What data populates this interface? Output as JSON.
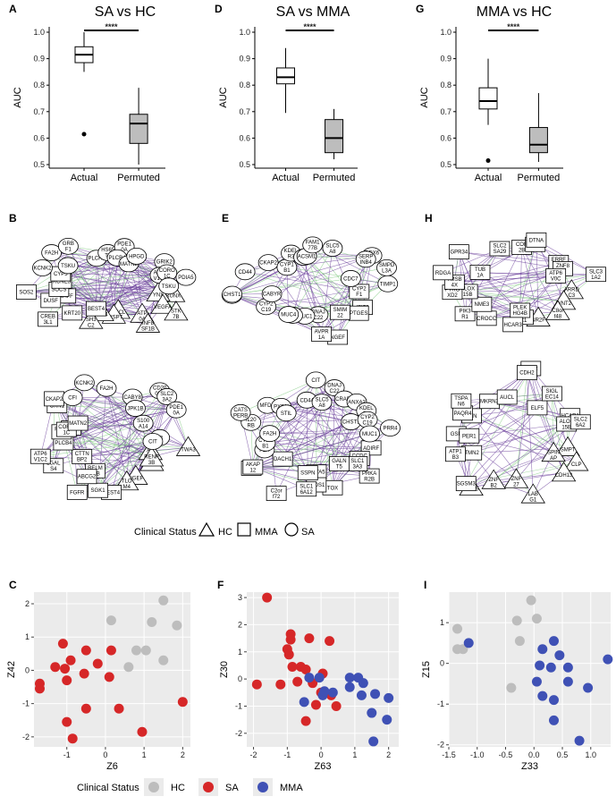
{
  "chart_data": [
    {
      "panel": "A",
      "type": "box",
      "title": "SA vs HC",
      "ylabel": "AUC",
      "ylim": [
        0.5,
        1.0
      ],
      "yticks": [
        "0.5",
        "0.6",
        "0.7",
        "0.8",
        "0.9",
        "1.0"
      ],
      "categories": [
        "Actual",
        "Permuted"
      ],
      "boxes": [
        {
          "category": "Actual",
          "min": 0.85,
          "q1": 0.885,
          "median": 0.915,
          "q3": 0.945,
          "max": 1.0,
          "outliers": [
            0.615
          ]
        },
        {
          "category": "Permuted",
          "min": 0.5,
          "q1": 0.58,
          "median": 0.655,
          "q3": 0.69,
          "max": 0.79,
          "outliers": []
        }
      ],
      "significance": "****"
    },
    {
      "panel": "D",
      "type": "box",
      "title": "SA vs MMA",
      "ylabel": "AUC",
      "ylim": [
        0.5,
        1.0
      ],
      "yticks": [
        "0.5",
        "0.6",
        "0.7",
        "0.8",
        "0.9",
        "1.0"
      ],
      "categories": [
        "Actual",
        "Permuted"
      ],
      "boxes": [
        {
          "category": "Actual",
          "min": 0.695,
          "q1": 0.805,
          "median": 0.83,
          "q3": 0.865,
          "max": 0.94,
          "outliers": []
        },
        {
          "category": "Permuted",
          "min": 0.52,
          "q1": 0.545,
          "median": 0.6,
          "q3": 0.67,
          "max": 0.71,
          "outliers": []
        }
      ],
      "significance": "****"
    },
    {
      "panel": "G",
      "type": "box",
      "title": "MMA vs HC",
      "ylabel": "AUC",
      "ylim": [
        0.5,
        1.0
      ],
      "yticks": [
        "0.5",
        "0.6",
        "0.7",
        "0.8",
        "0.9",
        "1.0"
      ],
      "categories": [
        "Actual",
        "Permuted"
      ],
      "boxes": [
        {
          "category": "Actual",
          "min": 0.65,
          "q1": 0.71,
          "median": 0.74,
          "q3": 0.79,
          "max": 0.9,
          "outliers": [
            0.515
          ]
        },
        {
          "category": "Permuted",
          "min": 0.51,
          "q1": 0.545,
          "median": 0.575,
          "q3": 0.64,
          "max": 0.77,
          "outliers": []
        }
      ],
      "significance": "****"
    },
    {
      "panel": "C",
      "type": "scatter",
      "xlabel": "Z6",
      "ylabel": "Z42",
      "xlim": [
        -1.85,
        2.2
      ],
      "ylim": [
        -2.3,
        2.35
      ],
      "xticks": [
        -1,
        0,
        1,
        2
      ],
      "yticks": [
        -2,
        -1,
        0,
        1,
        2
      ],
      "series": [
        {
          "name": "HC",
          "color": "#bdbdbd",
          "points": [
            [
              1.5,
              2.1
            ],
            [
              1.85,
              1.35
            ],
            [
              0.15,
              1.5
            ],
            [
              1.2,
              1.45
            ],
            [
              0.8,
              0.6
            ],
            [
              1.05,
              0.6
            ],
            [
              1.5,
              0.3
            ],
            [
              0.6,
              0.1
            ]
          ]
        },
        {
          "name": "SA",
          "color": "#d62728",
          "points": [
            [
              -1.1,
              0.8
            ],
            [
              -0.5,
              0.6
            ],
            [
              0.15,
              0.6
            ],
            [
              -1.3,
              0.1
            ],
            [
              -0.9,
              0.3
            ],
            [
              -1.05,
              0.05
            ],
            [
              -0.55,
              -0.1
            ],
            [
              -0.2,
              0.2
            ],
            [
              -1.7,
              -0.4
            ],
            [
              -1.7,
              -0.55
            ],
            [
              -1.0,
              -0.3
            ],
            [
              0.1,
              -0.2
            ],
            [
              -0.5,
              -1.15
            ],
            [
              0.35,
              -1.15
            ],
            [
              -1.0,
              -1.55
            ],
            [
              -0.85,
              -2.05
            ],
            [
              0.95,
              -1.85
            ],
            [
              2.0,
              -0.95
            ]
          ]
        }
      ]
    },
    {
      "panel": "F",
      "type": "scatter",
      "xlabel": "Z63",
      "ylabel": "Z30",
      "xlim": [
        -2.2,
        2.3
      ],
      "ylim": [
        -2.5,
        3.2
      ],
      "xticks": [
        -2,
        -1,
        0,
        1,
        2
      ],
      "yticks": [
        -2,
        -1,
        0,
        1,
        2,
        3
      ],
      "series": [
        {
          "name": "SA",
          "color": "#d62728",
          "points": [
            [
              -1.6,
              3.0
            ],
            [
              -0.9,
              1.65
            ],
            [
              -0.9,
              1.45
            ],
            [
              -0.35,
              1.5
            ],
            [
              0.25,
              1.4
            ],
            [
              -1.0,
              1.1
            ],
            [
              -0.95,
              0.9
            ],
            [
              -0.6,
              0.45
            ],
            [
              -0.85,
              0.45
            ],
            [
              -1.2,
              -0.2
            ],
            [
              -1.9,
              -0.2
            ],
            [
              -0.7,
              -0.1
            ],
            [
              -0.25,
              -0.15
            ],
            [
              0.05,
              0.2
            ],
            [
              -0.45,
              0.35
            ],
            [
              0.0,
              -0.5
            ],
            [
              -0.15,
              -0.95
            ],
            [
              -0.45,
              -1.55
            ],
            [
              0.3,
              -0.6
            ],
            [
              0.45,
              -1.0
            ]
          ]
        },
        {
          "name": "MMA",
          "color": "#3f51b5",
          "points": [
            [
              -0.35,
              0.05
            ],
            [
              -0.05,
              0.05
            ],
            [
              0.05,
              -0.6
            ],
            [
              0.85,
              0.05
            ],
            [
              1.1,
              0.05
            ],
            [
              0.85,
              -0.3
            ],
            [
              1.25,
              -0.15
            ],
            [
              0.35,
              -0.5
            ],
            [
              1.2,
              -0.6
            ],
            [
              1.6,
              -0.55
            ],
            [
              -0.5,
              -0.85
            ],
            [
              0.1,
              -0.45
            ],
            [
              1.5,
              -1.25
            ],
            [
              2.0,
              -0.7
            ],
            [
              1.95,
              -1.5
            ],
            [
              1.55,
              -2.3
            ]
          ]
        }
      ]
    },
    {
      "panel": "I",
      "type": "scatter",
      "xlabel": "Z33",
      "ylabel": "Z15",
      "xlim": [
        -1.5,
        1.35
      ],
      "ylim": [
        -2.05,
        1.75
      ],
      "xticks": [
        -1.5,
        -1.0,
        -0.5,
        0.0,
        0.5,
        1.0
      ],
      "yticks": [
        -2,
        -1,
        0,
        1
      ],
      "series": [
        {
          "name": "HC",
          "color": "#bdbdbd",
          "points": [
            [
              -0.05,
              1.55
            ],
            [
              -0.3,
              1.05
            ],
            [
              0.05,
              1.1
            ],
            [
              -1.35,
              0.85
            ],
            [
              -1.25,
              0.35
            ],
            [
              -1.35,
              0.35
            ],
            [
              -0.25,
              0.55
            ],
            [
              -0.4,
              -0.6
            ]
          ]
        },
        {
          "name": "MMA",
          "color": "#3f51b5",
          "points": [
            [
              -1.15,
              0.5
            ],
            [
              0.35,
              0.55
            ],
            [
              0.15,
              0.35
            ],
            [
              0.45,
              0.2
            ],
            [
              0.1,
              -0.05
            ],
            [
              0.3,
              -0.1
            ],
            [
              0.6,
              -0.1
            ],
            [
              1.3,
              0.1
            ],
            [
              0.05,
              -0.45
            ],
            [
              0.6,
              -0.45
            ],
            [
              0.15,
              -0.8
            ],
            [
              0.35,
              -0.9
            ],
            [
              0.95,
              -0.6
            ],
            [
              0.35,
              -1.4
            ],
            [
              0.8,
              -1.9
            ]
          ]
        }
      ]
    }
  ],
  "panels": {
    "A": {
      "letter": "A",
      "title": "SA vs HC"
    },
    "D": {
      "letter": "D",
      "title": "SA vs MMA"
    },
    "G": {
      "letter": "G",
      "title": "MMA vs HC"
    },
    "B": {
      "letter": "B"
    },
    "E": {
      "letter": "E"
    },
    "H": {
      "letter": "H"
    },
    "C": {
      "letter": "C"
    },
    "F": {
      "letter": "F"
    },
    "I": {
      "letter": "I"
    }
  },
  "networks": {
    "B_top": {
      "HC": [
        "RUNX",
        "YNX",
        "VEGFA",
        "STK\n7B",
        "ATP\n0A",
        "INF8\nSF1B",
        "CXCL",
        "SUSPT",
        "IRF4",
        "SH3\nC2"
      ],
      "MMA": [
        "BEST4",
        "CREB\n3L1",
        "KRT20",
        "MAFF",
        "DUSF",
        "SOCS",
        "SOS2",
        "KCNE3",
        "CYP3"
      ],
      "SA": [
        "KCNK2",
        "TSKU",
        "FA2H",
        "GRB\nF1",
        "PLCH2",
        "HS65\nT2",
        "PDE1\n0A",
        "PLCB4",
        "MATN2",
        "HPGD",
        "GRIK2",
        "ATP6\nV1C2",
        "CORO\n1C",
        "PDIA5",
        "TSKU"
      ]
    },
    "B_bottom": {
      "HC": [
        "TWA3",
        "AC\nEN",
        "APBB",
        "RENP\n3B",
        "NGEF",
        "TLO\nM4"
      ],
      "MMA": [
        "BEST4",
        "SGK1",
        "RELM\nL1B",
        "FGFR",
        "ABCG2",
        "LGAL\nS4",
        "CTTN\nBP2",
        "ATP6\nV1C2",
        "PLCB4",
        "RPS2\n6",
        "TSKU",
        "CORO\n1C",
        "MATN2",
        "OXN1",
        "CKAP2"
      ],
      "SA": [
        "CFI",
        "KCNK2",
        "FA2H",
        "CABY8",
        "JPK1B",
        "CD20\n0B1",
        "SLC2\n3A2",
        "PDE1\n0A",
        "S100\nA14",
        "F3",
        "CIT"
      ]
    },
    "E_top": {
      "HC": [],
      "MMA": [
        "CYP2\nF1",
        "IFIT5",
        "PTGES",
        "SMIM\n22",
        "NGEF",
        "AVPR\n1A"
      ],
      "SA": [
        "DNAJ\nC22",
        "MUC1",
        "CIT",
        "MUC4",
        "CYP2\nC19",
        "CABYR",
        "ABO",
        "CHST1",
        "CD44",
        "CKAP2",
        "CYP1\nB1",
        "KDEL\nR3",
        "ITIH6",
        "ACSM1",
        "FAM1\n77B",
        "SLC5\nA8",
        "DDX6\n0L",
        "SERP\nINB4",
        "SMPD\nL3A",
        "CDC7",
        "TIMP1"
      ]
    },
    "E_bottom": {
      "HC": [],
      "MMA": [
        "ADIRF",
        "CCDC\n81",
        "PRKA\nR2B",
        "SLC1\n3A3",
        "GALN\nT5",
        "TOX",
        "GSTA5",
        "FADS1",
        "SLC1\n6A12",
        "SSPN",
        "C2or\nf72",
        "DACH1",
        "MFSD\n2A",
        "AKAP\n12"
      ],
      "SA": [
        "F2R",
        "CYP1\nB1",
        "FA2H",
        "IL20\nRB",
        "CATS\nPERB",
        "MFDC",
        "PXDN",
        "STIL",
        "CD44",
        "CIT",
        "SLC5\nA8",
        "DNAJ\nC22",
        "CRAP2",
        "ANXA3",
        "CHST1",
        "KDEL\nR3",
        "CYP2\nC19",
        "PRR4",
        "MUC1"
      ]
    },
    "H_top": {
      "HC": [
        "ARRD\nC3",
        "WNT2",
        "C8or\nf48",
        "NR2F"
      ],
      "MMA": [
        "AKR1\nC1",
        "PLEK\nHG4B",
        "HCAR3",
        "CROCC",
        "PIK3\nR1",
        "NME3",
        "ALOX\n15B",
        "PYRO\nXD2",
        "TMSB\n4X",
        "RDGA",
        "TUB\n1A",
        "GPR34",
        "SLC2\nSA29",
        "COR\n2B",
        "GDA",
        "DTNA",
        "ERRF\nI1",
        "ZNF8\n46",
        "ATP6\nV0C",
        "SLC3\n1A2"
      ],
      "SA": []
    },
    "H_bottom": {
      "HC": [
        "SMPT",
        "SPIN\nAP",
        "CLP",
        "CDH13",
        "LAB\nG1",
        "ZNF\n27",
        "ZNF\nB2",
        "RGSS"
      ],
      "MMA": [
        "SGSM3",
        "TMN2",
        "ATP1\nB3",
        "GSN",
        "PER1",
        "PTN",
        "PAQR4",
        "TSPA\nN6",
        "MKRN3",
        "AUCL",
        "NAV2",
        "CDH2",
        "ELF5",
        "SIGL\nEC14",
        "HCAR1",
        "ALOX\n15B",
        "SLC2\n6A2"
      ],
      "SA": []
    }
  },
  "legend_top": {
    "title": "Clinical Status",
    "items": [
      "HC",
      "MMA",
      "SA"
    ]
  },
  "legend_bottom": {
    "title": "Clinical Status",
    "items": [
      {
        "label": "HC",
        "color": "#bdbdbd"
      },
      {
        "label": "SA",
        "color": "#d62728"
      },
      {
        "label": "MMA",
        "color": "#3f51b5"
      }
    ]
  }
}
